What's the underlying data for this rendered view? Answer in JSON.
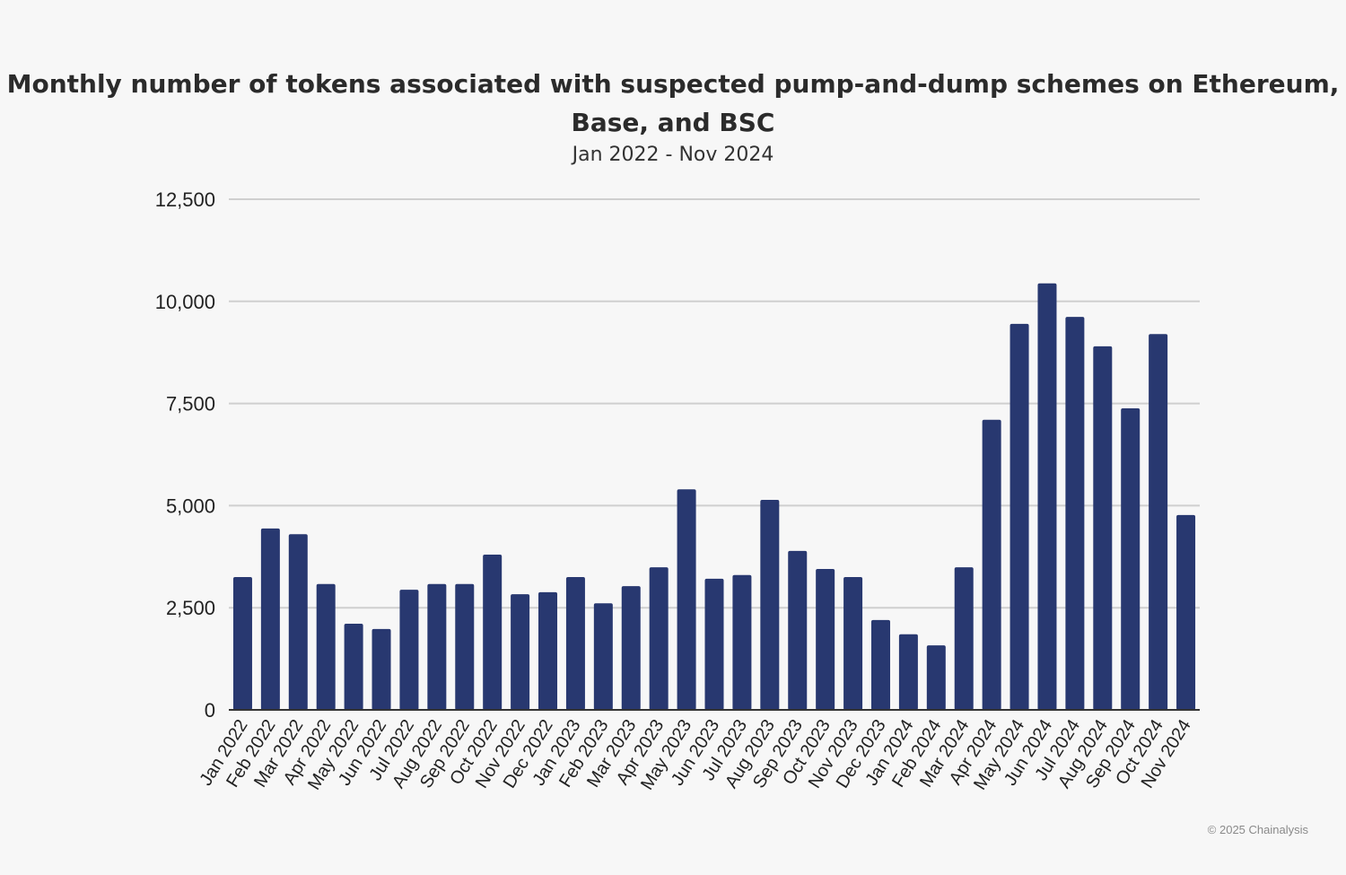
{
  "chart_data": {
    "type": "bar",
    "title": "Monthly number of tokens associated with suspected pump-and-dump schemes on Ethereum, Base, and BSC",
    "subtitle": "Jan 2022 - Nov 2024",
    "xlabel": "",
    "ylabel": "",
    "ylim": [
      0,
      12500
    ],
    "yticks": [
      0,
      2500,
      5000,
      7500,
      10000,
      12500
    ],
    "ytick_labels": [
      "0",
      "2,500",
      "5,000",
      "7,500",
      "10,000",
      "12,500"
    ],
    "grid": true,
    "bar_color": "#283870",
    "categories": [
      "Jan 2022",
      "Feb 2022",
      "Mar 2022",
      "Apr 2022",
      "May 2022",
      "Jun 2022",
      "Jul 2022",
      "Aug 2022",
      "Sep 2022",
      "Oct 2022",
      "Nov 2022",
      "Dec 2022",
      "Jan 2023",
      "Feb 2023",
      "Mar 2023",
      "Apr 2023",
      "May 2023",
      "Jun 2023",
      "Jul 2023",
      "Aug 2023",
      "Sep 2023",
      "Oct 2023",
      "Nov 2023",
      "Dec 2023",
      "Jan 2024",
      "Feb 2024",
      "Mar 2024",
      "Apr 2024",
      "May 2024",
      "Jun 2024",
      "Jul 2024",
      "Aug 2024",
      "Sep 2024",
      "Oct 2024",
      "Nov 2024"
    ],
    "values": [
      3250,
      4440,
      4300,
      3080,
      2110,
      1980,
      2940,
      3080,
      3080,
      3800,
      2830,
      2880,
      3250,
      2610,
      3030,
      3490,
      5400,
      3210,
      3300,
      5140,
      3890,
      3450,
      3250,
      2200,
      1850,
      1580,
      3490,
      7100,
      9450,
      10440,
      9620,
      8900,
      7380,
      9200,
      4770
    ]
  },
  "footer": {
    "copyright": "© 2025 Chainalysis"
  }
}
